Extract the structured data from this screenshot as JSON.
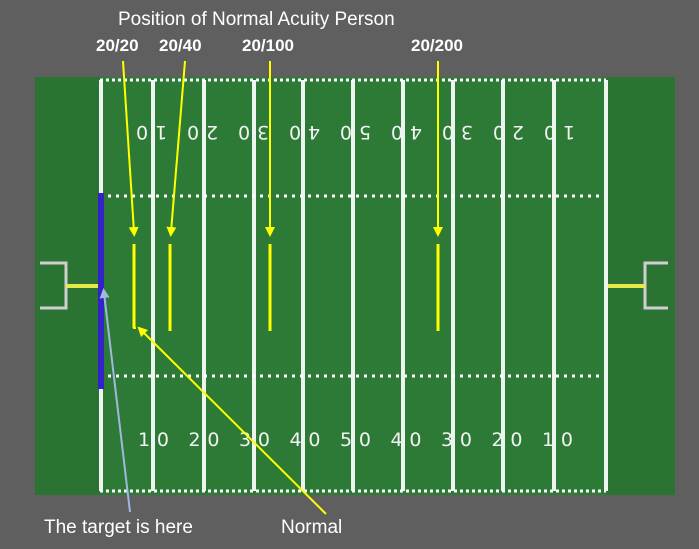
{
  "title": "Position of Normal Acuity Person",
  "acuity_labels": [
    "20/20",
    "20/40",
    "20/100",
    "20/200"
  ],
  "target_label": "The target is here",
  "normal_label": "Normal",
  "top_yard_numbers": "10 20 30 40 50 40 30 20 10",
  "bottom_yard_numbers": "10 20 30 40 50 40 30 20 10",
  "colors": {
    "background": "#5f5f5f",
    "field": "#2d7a36",
    "lines": "#ffffff",
    "pointer": "#ffff00",
    "target_bar": "#3322c8",
    "target_arrow": "#9fb8dd"
  }
}
